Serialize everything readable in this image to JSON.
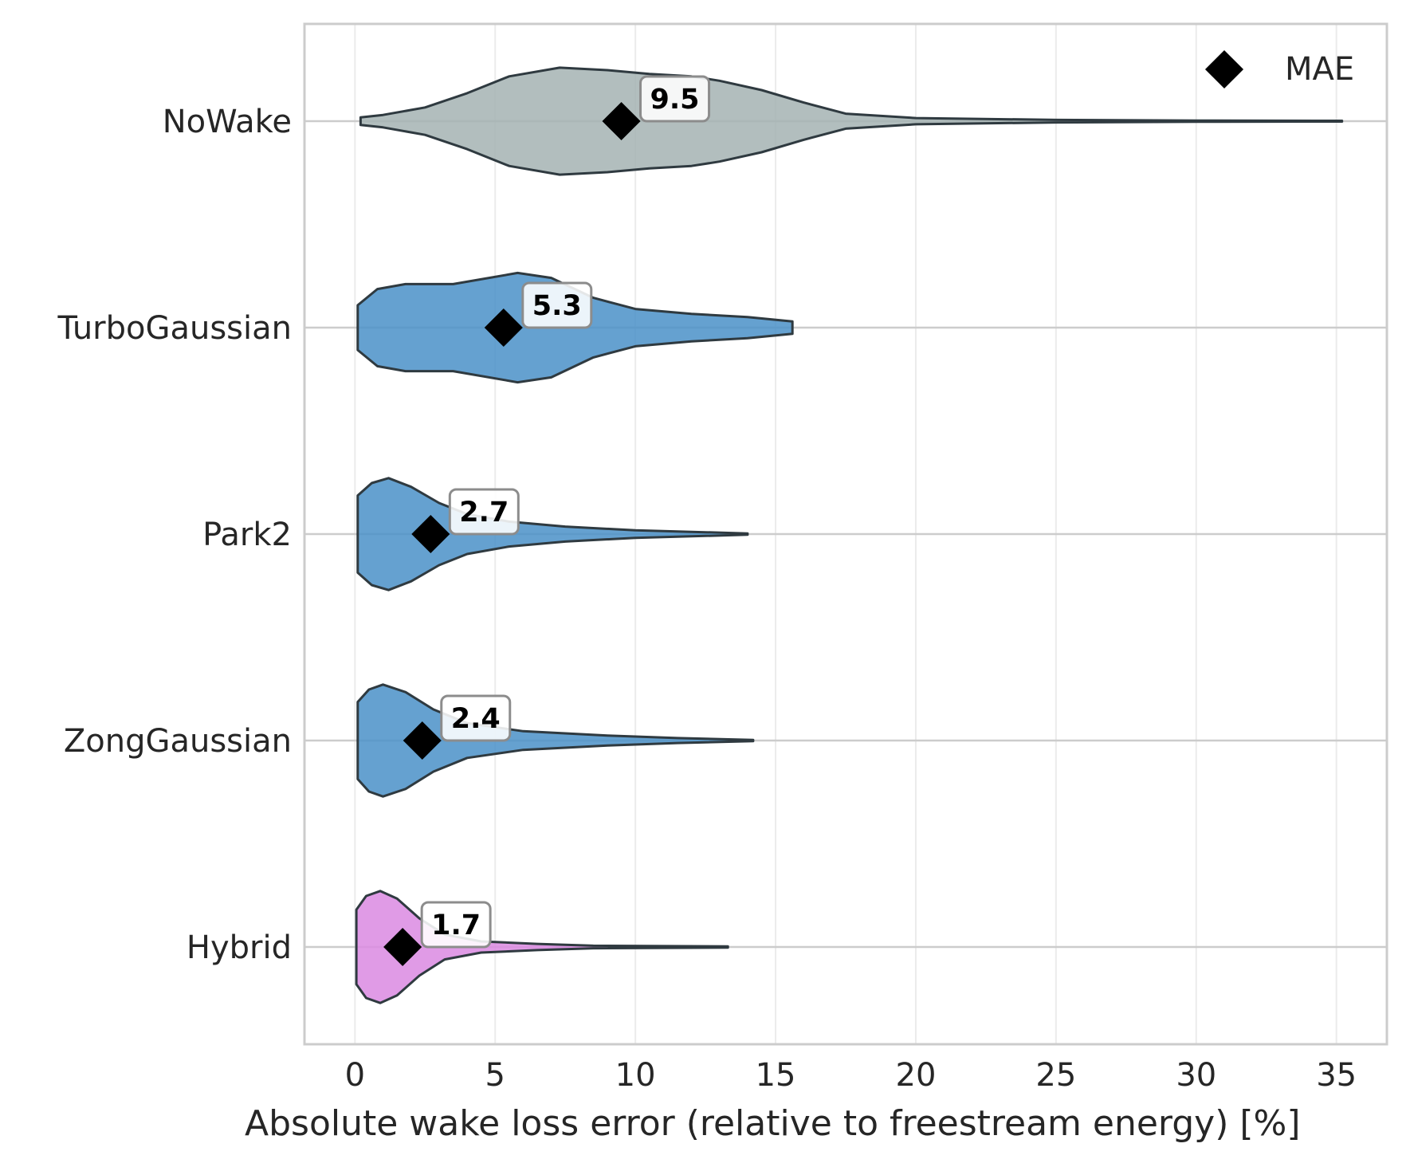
{
  "chart_data": {
    "type": "violin",
    "orientation": "horizontal",
    "title": "",
    "xlabel": "Absolute wake loss error (relative to freestream energy) [%]",
    "ylabel": "",
    "xlim": [
      -1.8,
      36.8
    ],
    "xticks": [
      0,
      5,
      10,
      15,
      20,
      25,
      30,
      35
    ],
    "grid": true,
    "legend": {
      "placement": "top-right",
      "entries": [
        {
          "marker": "diamond",
          "label": "MAE"
        }
      ]
    },
    "categories": [
      "NoWake",
      "TurboGaussian",
      "Park2",
      "ZongGaussian",
      "Hybrid"
    ],
    "series": [
      {
        "category": "NoWake",
        "color": "#a4b3b3",
        "mae": 9.5,
        "mae_label": "9.5",
        "density": [
          [
            0.2,
            0.06
          ],
          [
            1,
            0.1
          ],
          [
            2.5,
            0.22
          ],
          [
            4,
            0.45
          ],
          [
            5.5,
            0.72
          ],
          [
            7.3,
            0.86
          ],
          [
            9,
            0.82
          ],
          [
            10.5,
            0.76
          ],
          [
            12,
            0.72
          ],
          [
            13,
            0.65
          ],
          [
            14.5,
            0.5
          ],
          [
            16,
            0.3
          ],
          [
            17.5,
            0.12
          ],
          [
            20,
            0.05
          ],
          [
            25,
            0.02
          ],
          [
            30,
            0.01
          ],
          [
            35.2,
            0.006
          ]
        ]
      },
      {
        "category": "TurboGaussian",
        "color": "#4a90c8",
        "mae": 5.3,
        "mae_label": "5.3",
        "density": [
          [
            0.1,
            0.36
          ],
          [
            0.8,
            0.62
          ],
          [
            1.8,
            0.7
          ],
          [
            3.5,
            0.7
          ],
          [
            5.8,
            0.88
          ],
          [
            7,
            0.8
          ],
          [
            8.5,
            0.48
          ],
          [
            10,
            0.3
          ],
          [
            12,
            0.22
          ],
          [
            14,
            0.17
          ],
          [
            15.6,
            0.1
          ]
        ]
      },
      {
        "category": "Park2",
        "color": "#4a90c8",
        "mae": 2.7,
        "mae_label": "2.7",
        "density": [
          [
            0.1,
            0.62
          ],
          [
            0.6,
            0.82
          ],
          [
            1.2,
            0.9
          ],
          [
            2,
            0.76
          ],
          [
            3,
            0.5
          ],
          [
            4,
            0.32
          ],
          [
            5.5,
            0.2
          ],
          [
            7.5,
            0.12
          ],
          [
            10,
            0.06
          ],
          [
            12.5,
            0.03
          ],
          [
            14,
            0.01
          ]
        ]
      },
      {
        "category": "ZongGaussian",
        "color": "#4a90c8",
        "mae": 2.4,
        "mae_label": "2.4",
        "density": [
          [
            0.1,
            0.62
          ],
          [
            0.5,
            0.82
          ],
          [
            1,
            0.9
          ],
          [
            1.8,
            0.78
          ],
          [
            2.8,
            0.5
          ],
          [
            4,
            0.28
          ],
          [
            6,
            0.15
          ],
          [
            9,
            0.08
          ],
          [
            11.5,
            0.04
          ],
          [
            14.2,
            0.01
          ]
        ]
      },
      {
        "category": "Hybrid",
        "color": "#da8ae2",
        "mae": 1.7,
        "mae_label": "1.7",
        "density": [
          [
            0.05,
            0.6
          ],
          [
            0.4,
            0.82
          ],
          [
            0.9,
            0.9
          ],
          [
            1.5,
            0.78
          ],
          [
            2.3,
            0.46
          ],
          [
            3.2,
            0.2
          ],
          [
            4.5,
            0.09
          ],
          [
            6.5,
            0.05
          ],
          [
            8.5,
            0.02
          ],
          [
            13.3,
            0.01
          ]
        ]
      }
    ]
  }
}
